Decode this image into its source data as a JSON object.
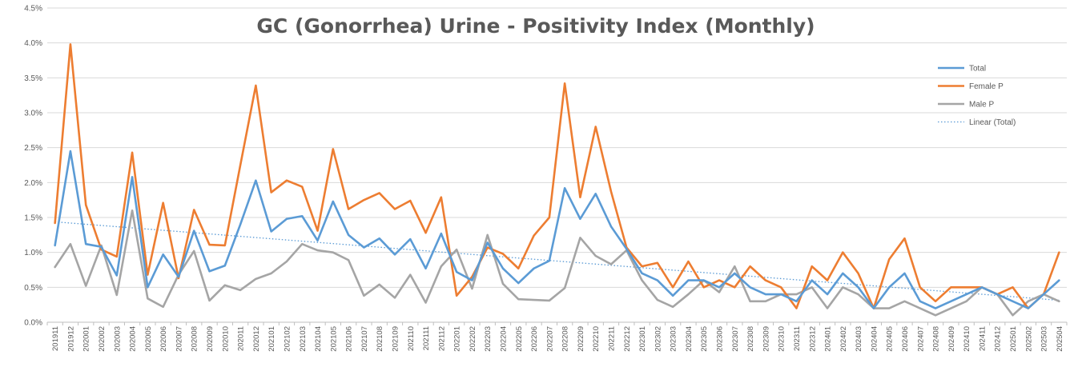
{
  "chart_data": {
    "type": "line",
    "title": "GC (Gonorrhea) Urine - Positivity Index (Monthly)",
    "xlabel": "",
    "ylabel": "",
    "ylim": [
      0,
      4.5
    ],
    "y_ticks": [
      "0.0%",
      "0.5%",
      "1.0%",
      "1.5%",
      "2.0%",
      "2.5%",
      "3.0%",
      "3.5%",
      "4.0%",
      "4.5%"
    ],
    "grid": true,
    "legend_position": "right",
    "categories": [
      "201911",
      "201912",
      "202001",
      "202002",
      "202003",
      "202004",
      "202005",
      "202006",
      "202007",
      "202008",
      "202009",
      "202010",
      "202011",
      "202012",
      "202101",
      "202102",
      "202103",
      "202104",
      "202105",
      "202106",
      "202107",
      "202108",
      "202109",
      "202110",
      "202111",
      "202112",
      "202201",
      "202202",
      "202203",
      "202204",
      "202205",
      "202206",
      "202207",
      "202208",
      "202209",
      "202210",
      "202211",
      "202212",
      "202301",
      "202302",
      "202303",
      "202304",
      "202305",
      "202306",
      "202307",
      "202308",
      "202309",
      "202310",
      "202311",
      "202312",
      "202401",
      "202402",
      "202403",
      "202404",
      "202405",
      "202406",
      "202407",
      "202408",
      "202409",
      "202410",
      "202411",
      "202412",
      "202501",
      "202502",
      "202503",
      "202504"
    ],
    "series": [
      {
        "name": "Total",
        "color": "#5B9BD5",
        "values": [
          1.1,
          2.45,
          1.12,
          1.08,
          0.67,
          2.08,
          0.5,
          0.97,
          0.65,
          1.31,
          0.73,
          0.81,
          1.4,
          2.03,
          1.3,
          1.48,
          1.52,
          1.17,
          1.73,
          1.25,
          1.07,
          1.2,
          0.97,
          1.19,
          0.77,
          1.27,
          0.72,
          0.6,
          1.14,
          0.77,
          0.56,
          0.77,
          0.88,
          1.92,
          1.48,
          1.84,
          1.37,
          1.05,
          0.7,
          0.6,
          0.38,
          0.6,
          0.6,
          0.5,
          0.7,
          0.5,
          0.4,
          0.4,
          0.3,
          0.6,
          0.4,
          0.7,
          0.5,
          0.2,
          0.5,
          0.7,
          0.3,
          0.2,
          0.3,
          0.4,
          0.5,
          0.4,
          0.3,
          0.2,
          0.4,
          0.6
        ]
      },
      {
        "name": "Female P",
        "color": "#ED7D31",
        "values": [
          1.42,
          3.98,
          1.68,
          1.04,
          0.94,
          2.43,
          0.68,
          1.71,
          0.63,
          1.61,
          1.11,
          1.1,
          2.25,
          3.39,
          1.86,
          2.03,
          1.94,
          1.31,
          2.48,
          1.62,
          1.75,
          1.85,
          1.62,
          1.74,
          1.28,
          1.79,
          0.38,
          0.65,
          1.07,
          0.98,
          0.77,
          1.24,
          1.5,
          3.42,
          1.79,
          2.8,
          1.87,
          1.07,
          0.8,
          0.85,
          0.5,
          0.87,
          0.5,
          0.6,
          0.5,
          0.8,
          0.6,
          0.5,
          0.2,
          0.8,
          0.6,
          1.0,
          0.7,
          0.2,
          0.9,
          1.2,
          0.5,
          0.3,
          0.5,
          0.5,
          0.5,
          0.4,
          0.5,
          0.2,
          0.4,
          1.0
        ]
      },
      {
        "name": "Male P",
        "color": "#A5A5A5",
        "values": [
          0.79,
          1.12,
          0.52,
          1.1,
          0.39,
          1.6,
          0.34,
          0.22,
          0.68,
          1.02,
          0.31,
          0.53,
          0.46,
          0.62,
          0.7,
          0.87,
          1.12,
          1.03,
          1.0,
          0.89,
          0.38,
          0.54,
          0.35,
          0.68,
          0.28,
          0.8,
          1.04,
          0.48,
          1.25,
          0.55,
          0.33,
          0.32,
          0.31,
          0.49,
          1.21,
          0.95,
          0.83,
          1.03,
          0.6,
          0.32,
          0.22,
          0.4,
          0.6,
          0.43,
          0.8,
          0.3,
          0.3,
          0.4,
          0.4,
          0.5,
          0.2,
          0.5,
          0.4,
          0.2,
          0.2,
          0.3,
          0.2,
          0.1,
          0.2,
          0.3,
          0.5,
          0.4,
          0.1,
          0.3,
          0.4,
          0.3
        ]
      }
    ],
    "trendline": {
      "name": "Linear (Total)",
      "of_series": "Total",
      "color": "#5B9BD5",
      "style": "dotted"
    }
  }
}
